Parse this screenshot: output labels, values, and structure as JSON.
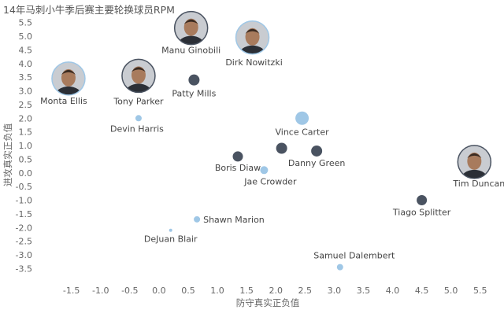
{
  "chart_data": {
    "type": "scatter",
    "title": "14年马刺小牛季后赛主要轮换球员RPM",
    "xlabel": "防守真实正负值",
    "ylabel": "进攻真实正负值",
    "xlim": [
      -1.9,
      5.8
    ],
    "ylim": [
      -3.95,
      5.75
    ],
    "xticks": [
      "-1.5",
      "-1.0",
      "-0.5",
      "0.0",
      "0.5",
      "1.0",
      "1.5",
      "2.0",
      "2.5",
      "3.0",
      "3.5",
      "4.0",
      "4.5",
      "5.0",
      "5.5"
    ],
    "yticks": [
      "5.5",
      "5.0",
      "4.5",
      "4.0",
      "3.5",
      "3.0",
      "2.5",
      "2.0",
      "1.5",
      "1.0",
      "0.5",
      "0.0",
      "-0.5",
      "-1.0",
      "-1.5",
      "-2.0",
      "-2.5",
      "-3.0",
      "-3.5"
    ],
    "grid": false,
    "colors": {
      "spurs": "#4a5361",
      "mavericks": "#9fc7e6"
    },
    "points": [
      {
        "name": "Manu Ginobili",
        "x": 0.55,
        "y": 5.3,
        "team": "spurs",
        "photo": true
      },
      {
        "name": "Dirk Nowitzki",
        "x": 1.6,
        "y": 4.95,
        "team": "mavericks",
        "photo": true
      },
      {
        "name": "Monta Ellis",
        "x": -1.55,
        "y": 3.45,
        "team": "mavericks",
        "photo": true
      },
      {
        "name": "Tony Parker",
        "x": -0.35,
        "y": 3.55,
        "team": "spurs",
        "photo": true
      },
      {
        "name": "Patty Mills",
        "x": 0.6,
        "y": 3.4,
        "team": "spurs",
        "size": 14
      },
      {
        "name": "Devin Harris",
        "x": -0.35,
        "y": 2.0,
        "team": "mavericks",
        "size": 8
      },
      {
        "name": "Vince Carter",
        "x": 2.45,
        "y": 2.0,
        "team": "mavericks",
        "size": 17
      },
      {
        "name": "Boris Diaw",
        "x": 1.35,
        "y": 0.6,
        "team": "spurs",
        "size": 13
      },
      {
        "name": "Jae Crowder",
        "x": 1.8,
        "y": 0.1,
        "team": "mavericks",
        "size": 10
      },
      {
        "name": "Danny Green",
        "x": 2.7,
        "y": 0.8,
        "team": "spurs",
        "size": 14
      },
      {
        "name": "Tim Duncan",
        "x": 5.4,
        "y": 0.4,
        "team": "spurs",
        "photo": true
      },
      {
        "name": "Tiago Splitter",
        "x": 4.5,
        "y": -1.0,
        "team": "spurs",
        "size": 13
      },
      {
        "name": "Shawn Marion",
        "x": 0.65,
        "y": -1.7,
        "team": "mavericks",
        "size": 8
      },
      {
        "name": "DeJuan Blair",
        "x": 0.2,
        "y": -2.1,
        "team": "mavericks",
        "size": 4
      },
      {
        "name": "Samuel Dalembert",
        "x": 3.1,
        "y": -3.45,
        "team": "mavericks",
        "size": 8
      }
    ],
    "unlabeled_points": [
      {
        "x": 2.1,
        "y": 0.9,
        "team": "spurs",
        "size": 14
      }
    ]
  }
}
